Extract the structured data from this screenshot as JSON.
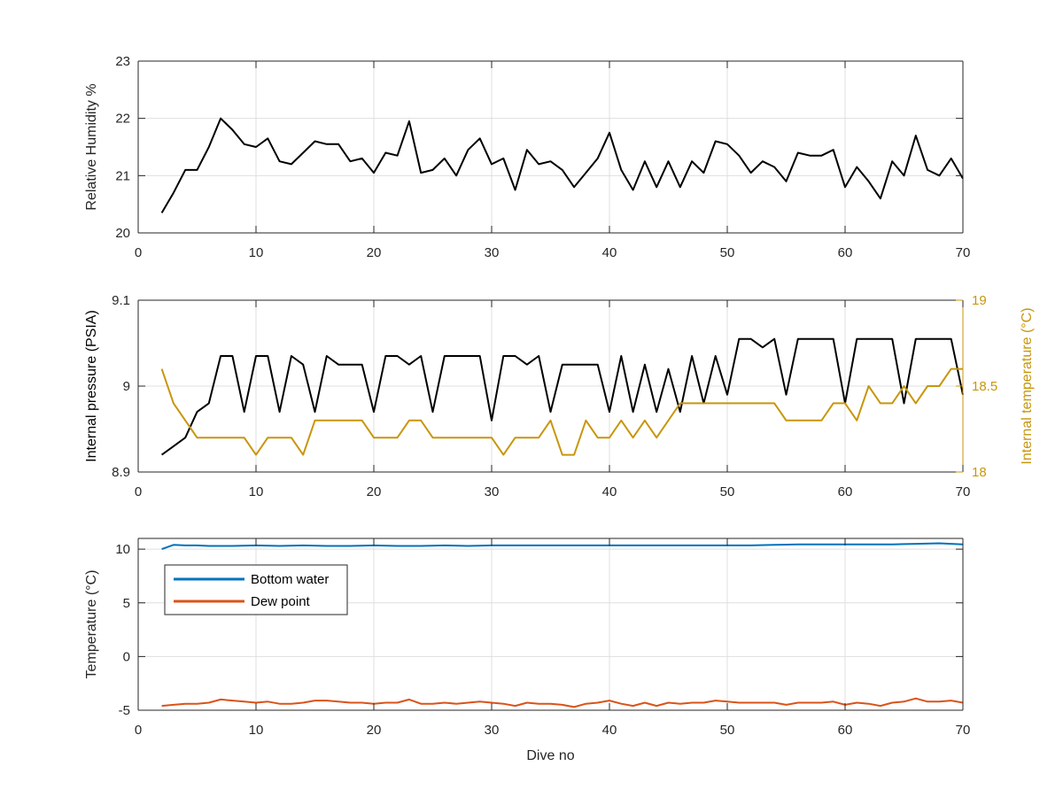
{
  "chart_data": [
    {
      "type": "line",
      "ylabel": "Relative Humidity %",
      "xlim": [
        0,
        70
      ],
      "ylim": [
        20,
        23
      ],
      "xticks": [
        0,
        10,
        20,
        30,
        40,
        50,
        60,
        70
      ],
      "yticks": [
        20,
        21,
        22,
        23
      ],
      "grid": true,
      "series": [
        {
          "color": "#000000",
          "x": [
            2,
            3,
            4,
            5,
            6,
            7,
            8,
            9,
            10,
            11,
            12,
            13,
            14,
            15,
            16,
            17,
            18,
            19,
            20,
            21,
            22,
            23,
            24,
            25,
            26,
            27,
            28,
            29,
            30,
            31,
            32,
            33,
            34,
            35,
            36,
            37,
            38,
            39,
            40,
            41,
            42,
            43,
            44,
            45,
            46,
            47,
            48,
            49,
            50,
            51,
            52,
            53,
            54,
            55,
            56,
            57,
            58,
            59,
            60,
            61,
            62,
            63,
            64,
            65,
            66,
            67,
            68,
            69,
            70
          ],
          "y": [
            20.35,
            20.7,
            21.1,
            21.1,
            21.5,
            22.0,
            21.8,
            21.55,
            21.5,
            21.65,
            21.25,
            21.2,
            21.4,
            21.6,
            21.55,
            21.55,
            21.25,
            21.3,
            21.05,
            21.4,
            21.35,
            21.95,
            21.05,
            21.1,
            21.3,
            21.0,
            21.45,
            21.65,
            21.2,
            21.3,
            20.75,
            21.45,
            21.2,
            21.25,
            21.1,
            20.8,
            21.05,
            21.3,
            21.75,
            21.1,
            20.75,
            21.25,
            20.8,
            21.25,
            20.8,
            21.25,
            21.05,
            21.6,
            21.55,
            21.35,
            21.05,
            21.25,
            21.15,
            20.9,
            21.4,
            21.35,
            21.35,
            21.45,
            20.8,
            21.15,
            20.9,
            20.6,
            21.25,
            21.0,
            21.7,
            21.1,
            21.0,
            21.3,
            20.95
          ]
        }
      ]
    },
    {
      "type": "line",
      "ylabel": "Internal pressure (PSIA)",
      "y2label": "Internal temperature (°C)",
      "xlim": [
        0,
        70
      ],
      "ylim": [
        8.9,
        9.1
      ],
      "y2lim": [
        18,
        19
      ],
      "xticks": [
        0,
        10,
        20,
        30,
        40,
        50,
        60,
        70
      ],
      "yticks": [
        8.9,
        9.0,
        9.1
      ],
      "ytick_labels": [
        "8.9",
        "9",
        "9.1"
      ],
      "y2ticks": [
        18,
        18.5,
        19
      ],
      "y2tick_labels": [
        "18",
        "18.5",
        "19"
      ],
      "grid": true,
      "series": [
        {
          "axis": "left",
          "color": "#000000",
          "x": [
            2,
            3,
            4,
            5,
            6,
            7,
            8,
            9,
            10,
            11,
            12,
            13,
            14,
            15,
            16,
            17,
            18,
            19,
            20,
            21,
            22,
            23,
            24,
            25,
            26,
            27,
            28,
            29,
            30,
            31,
            32,
            33,
            34,
            35,
            36,
            37,
            38,
            39,
            40,
            41,
            42,
            43,
            44,
            45,
            46,
            47,
            48,
            49,
            50,
            51,
            52,
            53,
            54,
            55,
            56,
            57,
            58,
            59,
            60,
            61,
            62,
            63,
            64,
            65,
            66,
            67,
            68,
            69,
            70
          ],
          "y": [
            8.92,
            8.93,
            8.94,
            8.97,
            8.98,
            9.035,
            9.035,
            8.97,
            9.035,
            9.035,
            8.97,
            9.035,
            9.025,
            8.97,
            9.035,
            9.025,
            9.025,
            9.025,
            8.97,
            9.035,
            9.035,
            9.025,
            9.035,
            8.97,
            9.035,
            9.035,
            9.035,
            9.035,
            8.96,
            9.035,
            9.035,
            9.025,
            9.035,
            8.97,
            9.025,
            9.025,
            9.025,
            9.025,
            8.97,
            9.035,
            8.97,
            9.025,
            8.97,
            9.02,
            8.97,
            9.035,
            8.98,
            9.035,
            8.99,
            9.055,
            9.055,
            9.045,
            9.055,
            8.99,
            9.055,
            9.055,
            9.055,
            9.055,
            8.98,
            9.055,
            9.055,
            9.055,
            9.055,
            8.98,
            9.055,
            9.055,
            9.055,
            9.055,
            8.99
          ]
        },
        {
          "axis": "right",
          "color": "#c8960c",
          "x": [
            2,
            3,
            4,
            5,
            6,
            7,
            8,
            9,
            10,
            11,
            12,
            13,
            14,
            15,
            16,
            17,
            18,
            19,
            20,
            21,
            22,
            23,
            24,
            25,
            26,
            27,
            28,
            29,
            30,
            31,
            32,
            33,
            34,
            35,
            36,
            37,
            38,
            39,
            40,
            41,
            42,
            43,
            44,
            45,
            46,
            47,
            48,
            49,
            50,
            51,
            52,
            53,
            54,
            55,
            56,
            57,
            58,
            59,
            60,
            61,
            62,
            63,
            64,
            65,
            66,
            67,
            68,
            69,
            70
          ],
          "y": [
            18.6,
            18.4,
            18.3,
            18.2,
            18.2,
            18.2,
            18.2,
            18.2,
            18.1,
            18.2,
            18.2,
            18.2,
            18.1,
            18.3,
            18.3,
            18.3,
            18.3,
            18.3,
            18.2,
            18.2,
            18.2,
            18.3,
            18.3,
            18.2,
            18.2,
            18.2,
            18.2,
            18.2,
            18.2,
            18.1,
            18.2,
            18.2,
            18.2,
            18.3,
            18.1,
            18.1,
            18.3,
            18.2,
            18.2,
            18.3,
            18.2,
            18.3,
            18.2,
            18.3,
            18.4,
            18.4,
            18.4,
            18.4,
            18.4,
            18.4,
            18.4,
            18.4,
            18.4,
            18.3,
            18.3,
            18.3,
            18.3,
            18.4,
            18.4,
            18.3,
            18.5,
            18.4,
            18.4,
            18.5,
            18.4,
            18.5,
            18.5,
            18.6,
            18.6
          ]
        }
      ]
    },
    {
      "type": "line",
      "xlabel": "Dive no",
      "ylabel": "Temperature (°C)",
      "xlim": [
        0,
        70
      ],
      "ylim": [
        -5,
        11
      ],
      "xticks": [
        0,
        10,
        20,
        30,
        40,
        50,
        60,
        70
      ],
      "yticks": [
        -5,
        0,
        5,
        10
      ],
      "grid": true,
      "legend": "top-left",
      "series": [
        {
          "name": "Bottom water",
          "color": "#0072bd",
          "x": [
            2,
            3,
            4,
            5,
            6,
            8,
            10,
            12,
            14,
            16,
            18,
            20,
            22,
            24,
            26,
            28,
            30,
            32,
            34,
            36,
            38,
            40,
            42,
            44,
            46,
            48,
            50,
            52,
            54,
            56,
            58,
            60,
            62,
            64,
            66,
            68,
            69,
            70
          ],
          "y": [
            10.0,
            10.4,
            10.35,
            10.35,
            10.3,
            10.3,
            10.35,
            10.3,
            10.35,
            10.3,
            10.3,
            10.35,
            10.3,
            10.3,
            10.35,
            10.3,
            10.35,
            10.35,
            10.35,
            10.35,
            10.35,
            10.35,
            10.35,
            10.35,
            10.35,
            10.35,
            10.35,
            10.35,
            10.4,
            10.45,
            10.45,
            10.45,
            10.45,
            10.45,
            10.5,
            10.55,
            10.5,
            10.45
          ]
        },
        {
          "name": "Dew point",
          "color": "#d95319",
          "x": [
            2,
            3,
            4,
            5,
            6,
            7,
            8,
            9,
            10,
            11,
            12,
            13,
            14,
            15,
            16,
            17,
            18,
            19,
            20,
            21,
            22,
            23,
            24,
            25,
            26,
            27,
            28,
            29,
            30,
            31,
            32,
            33,
            34,
            35,
            36,
            37,
            38,
            39,
            40,
            41,
            42,
            43,
            44,
            45,
            46,
            47,
            48,
            49,
            50,
            51,
            52,
            53,
            54,
            55,
            56,
            57,
            58,
            59,
            60,
            61,
            62,
            63,
            64,
            65,
            66,
            67,
            68,
            69,
            70
          ],
          "y": [
            -4.6,
            -4.5,
            -4.4,
            -4.4,
            -4.3,
            -4.0,
            -4.1,
            -4.2,
            -4.3,
            -4.2,
            -4.4,
            -4.4,
            -4.3,
            -4.1,
            -4.1,
            -4.2,
            -4.3,
            -4.3,
            -4.4,
            -4.3,
            -4.3,
            -4.0,
            -4.4,
            -4.4,
            -4.3,
            -4.4,
            -4.3,
            -4.2,
            -4.3,
            -4.4,
            -4.6,
            -4.3,
            -4.4,
            -4.4,
            -4.5,
            -4.7,
            -4.4,
            -4.3,
            -4.1,
            -4.4,
            -4.6,
            -4.3,
            -4.6,
            -4.3,
            -4.4,
            -4.3,
            -4.3,
            -4.1,
            -4.2,
            -4.3,
            -4.3,
            -4.3,
            -4.3,
            -4.5,
            -4.3,
            -4.3,
            -4.3,
            -4.2,
            -4.5,
            -4.3,
            -4.4,
            -4.6,
            -4.3,
            -4.2,
            -3.9,
            -4.2,
            -4.2,
            -4.1,
            -4.3
          ]
        }
      ]
    }
  ]
}
